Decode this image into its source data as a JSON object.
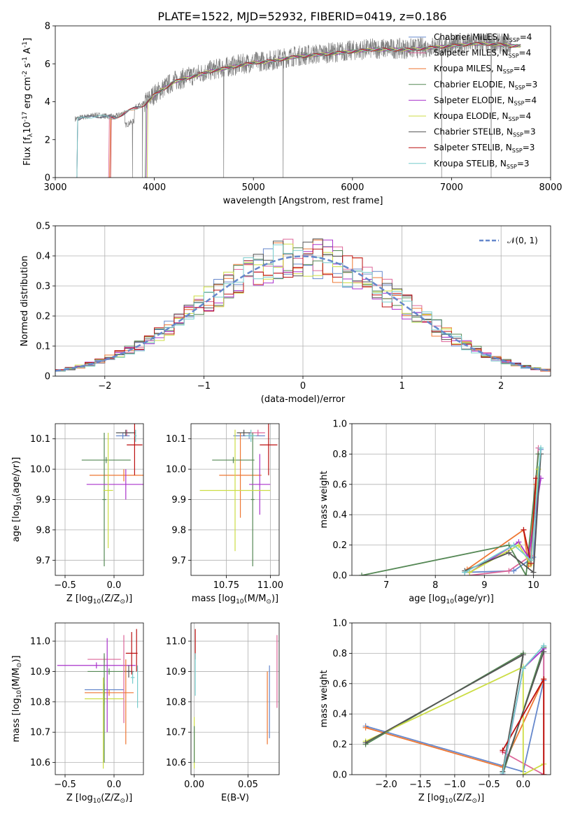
{
  "figure_title": "PLATE=1522, MJD=52932, FIBERID=0419, z=0.186",
  "colors": {
    "chabrier_miles": "#6688cc",
    "salpeter_miles": "#dd6699",
    "kroupa_miles": "#ee7733",
    "chabrier_elodie": "#558855",
    "salpeter_elodie": "#aa33cc",
    "kroupa_elodie": "#ccdd44",
    "chabrier_stelib": "#555555",
    "salpeter_stelib": "#bb1111",
    "kroupa_stelib": "#77cccc",
    "data": "#808080",
    "gauss": "#6688cc",
    "grid": "#b0b0b0"
  },
  "chart_data": [
    {
      "id": "spectrum",
      "type": "line",
      "xlabel": "wavelength [Angstrom, rest frame]",
      "ylabel": "Flux [f$_\\lambda$10$^{-17}$ erg cm$^{-2}$ s$^{-1}$ A$^{-1}$]",
      "xlim": [
        3000,
        8000
      ],
      "ylim": [
        0,
        8
      ],
      "xticks": [
        3000,
        4000,
        5000,
        6000,
        7000,
        8000
      ],
      "yticks": [
        0,
        2,
        4,
        6,
        8
      ],
      "grid": false,
      "legend_loc": "right",
      "legend": [
        {
          "main": "Chabrier MILES, N",
          "sub": "SSP",
          "tail": "=4",
          "color": "#6688cc"
        },
        {
          "main": "Salpeter MILES, N",
          "sub": "SSP",
          "tail": "=4",
          "color": "#dd6699"
        },
        {
          "main": "Kroupa MILES, N",
          "sub": "SSP",
          "tail": "=4",
          "color": "#ee7733"
        },
        {
          "main": "Chabrier ELODIE, N",
          "sub": "SSP",
          "tail": "=3",
          "color": "#558855"
        },
        {
          "main": "Salpeter ELODIE, N",
          "sub": "SSP",
          "tail": "=4",
          "color": "#aa33cc"
        },
        {
          "main": "Kroupa ELODIE, N",
          "sub": "SSP",
          "tail": "=4",
          "color": "#ccdd44"
        },
        {
          "main": "Chabrier STELIB, N",
          "sub": "SSP",
          "tail": "=3",
          "color": "#555555"
        },
        {
          "main": "Salpeter STELIB, N",
          "sub": "SSP",
          "tail": "=3",
          "color": "#bb1111"
        },
        {
          "main": "Kroupa STELIB, N",
          "sub": "SSP",
          "tail": "=3",
          "color": "#77cccc"
        }
      ],
      "data_envelope": {
        "x": [
          3200,
          3400,
          3600,
          3800,
          3900,
          4000,
          4200,
          4400,
          4600,
          4800,
          5000,
          5200,
          5400,
          5600,
          5800,
          6000,
          6200,
          6400,
          6600,
          6800,
          7000,
          7200,
          7400,
          7600
        ],
        "y": [
          3.1,
          3.3,
          3.2,
          3.7,
          3.9,
          4.4,
          5.1,
          5.4,
          5.7,
          5.9,
          6.1,
          6.2,
          6.4,
          6.5,
          6.6,
          6.7,
          6.8,
          6.8,
          6.8,
          6.9,
          7.0,
          7.1,
          7.1,
          7.0
        ]
      },
      "data_dips": [
        3780,
        3880,
        4700,
        5300,
        6900,
        7400
      ]
    },
    {
      "id": "residuals",
      "type": "line",
      "xlabel": "(data-model)/error",
      "ylabel": "Normed distribution",
      "xlim": [
        -2.5,
        2.5
      ],
      "ylim": [
        0,
        0.5
      ],
      "xticks": [
        -2,
        -1,
        0,
        1,
        2
      ],
      "yticks": [
        0.0,
        0.1,
        0.2,
        0.3,
        0.4,
        0.5
      ],
      "grid": true,
      "legend_loc": "upper right",
      "gauss_label": "$\\mathcal{N}(0,1)$",
      "gauss": {
        "mean": 0,
        "sigma": 1
      },
      "hist_bins": {
        "start": -2.5,
        "width": 0.1,
        "count": 50
      }
    },
    {
      "id": "age_vs_Z",
      "type": "scatter",
      "xlabel": "Z [log$_{10}$(Z/Z$_\\odot$)]",
      "ylabel": "age  [log$_{10}$(age/yr)]",
      "xlim": [
        -0.6,
        0.3
      ],
      "ylim": [
        9.65,
        10.15
      ],
      "xticks": [
        -0.5,
        0.0
      ],
      "yticks": [
        9.7,
        9.8,
        9.9,
        10.0,
        10.1
      ],
      "grid": true,
      "points": [
        {
          "s": 0,
          "x": 0.09,
          "y": 10.11,
          "xerr": 0.07,
          "yerr": 0.01
        },
        {
          "s": 1,
          "x": 0.13,
          "y": 10.12,
          "xerr": 0.04,
          "yerr": 0.01
        },
        {
          "s": 2,
          "x": 0.1,
          "y": 9.98,
          "xerr": 0.35,
          "yerr": 0.02
        },
        {
          "s": 3,
          "x": -0.1,
          "y": 9.9,
          "xerr": 0.02,
          "yerr": 0.22
        },
        {
          "s": 3,
          "x": -0.08,
          "y": 10.03,
          "xerr": 0.25,
          "yerr": 0.01
        },
        {
          "s": 4,
          "x": 0.12,
          "y": 9.95,
          "xerr": 0.4,
          "yerr": 0.05
        },
        {
          "s": 5,
          "x": -0.06,
          "y": 9.93,
          "xerr": 0.05,
          "yerr": 0.19
        },
        {
          "s": 6,
          "x": 0.12,
          "y": 10.12,
          "xerr": 0.1,
          "yerr": 0.01
        },
        {
          "s": 7,
          "x": 0.21,
          "y": 10.08,
          "xerr": 0.08,
          "yerr": 0.1
        },
        {
          "s": 8,
          "x": 0.22,
          "y": 10.11,
          "xerr": 0.01,
          "yerr": 0.02
        }
      ]
    },
    {
      "id": "age_vs_mass",
      "type": "scatter",
      "xlabel": "mass [log$_{10}$(M/M$_\\odot$)]",
      "ylabel": "",
      "xlim": [
        10.55,
        11.05
      ],
      "ylim": [
        9.65,
        10.15
      ],
      "xticks": [
        10.75,
        11.0
      ],
      "yticks": [
        9.7,
        9.8,
        9.9,
        10.0,
        10.1
      ],
      "grid": true,
      "points": [
        {
          "s": 0,
          "x": 10.88,
          "y": 10.11,
          "xerr": 0.09,
          "yerr": 0.01
        },
        {
          "s": 1,
          "x": 10.93,
          "y": 10.12,
          "xerr": 0.04,
          "yerr": 0.01
        },
        {
          "s": 2,
          "x": 10.83,
          "y": 9.98,
          "xerr": 0.12,
          "yerr": 0.14
        },
        {
          "s": 3,
          "x": 10.9,
          "y": 9.9,
          "xerr": 0.01,
          "yerr": 0.22
        },
        {
          "s": 3,
          "x": 10.79,
          "y": 10.03,
          "xerr": 0.12,
          "yerr": 0.01
        },
        {
          "s": 4,
          "x": 10.94,
          "y": 9.95,
          "xerr": 0.06,
          "yerr": 0.1
        },
        {
          "s": 5,
          "x": 10.8,
          "y": 9.93,
          "xerr": 0.2,
          "yerr": 0.2
        },
        {
          "s": 6,
          "x": 10.85,
          "y": 10.12,
          "xerr": 0.04,
          "yerr": 0.01
        },
        {
          "s": 7,
          "x": 10.99,
          "y": 10.08,
          "xerr": 0.05,
          "yerr": 0.1
        },
        {
          "s": 8,
          "x": 10.89,
          "y": 10.11,
          "xerr": 0.03,
          "yerr": 0.02
        }
      ]
    },
    {
      "id": "mass_weight_vs_age",
      "type": "line",
      "xlabel": "age  [log$_{10}$(age/yr)]",
      "ylabel": "mass weight",
      "xlim": [
        6.3,
        10.35
      ],
      "ylim": [
        0,
        1
      ],
      "xticks": [
        7,
        8,
        9,
        10
      ],
      "yticks": [
        0.0,
        0.2,
        0.4,
        0.6,
        0.8,
        1.0
      ],
      "grid": true,
      "series": [
        {
          "s": 0,
          "x": [
            8.6,
            9.6,
            10.0,
            10.15
          ],
          "y": [
            0.02,
            0.03,
            0.12,
            0.83
          ]
        },
        {
          "s": 1,
          "x": [
            8.7,
            9.5,
            9.95,
            10.1
          ],
          "y": [
            0.0,
            0.03,
            0.13,
            0.84
          ]
        },
        {
          "s": 2,
          "x": [
            8.65,
            9.8,
            9.9,
            10.05
          ],
          "y": [
            0.04,
            0.3,
            0.06,
            0.6
          ]
        },
        {
          "s": 3,
          "x": [
            6.5,
            9.5,
            9.85,
            10.1
          ],
          "y": [
            0.0,
            0.2,
            0.0,
            0.8
          ]
        },
        {
          "s": 4,
          "x": [
            8.7,
            9.7,
            9.9,
            10.15
          ],
          "y": [
            0.02,
            0.22,
            0.12,
            0.64
          ]
        },
        {
          "s": 5,
          "x": [
            8.7,
            9.7,
            9.95,
            10.1
          ],
          "y": [
            0.02,
            0.2,
            0.07,
            0.7
          ]
        },
        {
          "s": 6,
          "x": [
            8.6,
            9.5,
            10.0,
            10.15
          ],
          "y": [
            0.03,
            0.15,
            0.02,
            0.8
          ]
        },
        {
          "s": 7,
          "x": [
            9.8,
            9.95,
            10.05
          ],
          "y": [
            0.3,
            0.08,
            0.64
          ]
        },
        {
          "s": 8,
          "x": [
            8.6,
            9.6,
            9.95,
            10.15
          ],
          "y": [
            0.02,
            0.2,
            0.1,
            0.84
          ]
        }
      ]
    },
    {
      "id": "mass_vs_Z",
      "type": "scatter",
      "xlabel": "Z [log$_{10}$(Z/Z$_\\odot$)]",
      "ylabel": "mass [log$_{10}$(M/M$_\\odot$)]",
      "xlim": [
        -0.6,
        0.3
      ],
      "ylim": [
        10.56,
        11.06
      ],
      "xticks": [
        -0.5,
        0.0
      ],
      "yticks": [
        10.6,
        10.7,
        10.8,
        10.9,
        11.0
      ],
      "grid": true,
      "points": [
        {
          "s": 0,
          "x": -0.1,
          "y": 10.84,
          "xerr": 0.2,
          "yerr": 0.02
        },
        {
          "s": 1,
          "x": -0.1,
          "y": 10.94,
          "xerr": 0.17,
          "yerr": 0.01
        },
        {
          "s": 2,
          "x": -0.05,
          "y": 10.83,
          "xerr": 0.25,
          "yerr": 0.01
        },
        {
          "s": 3,
          "x": -0.05,
          "y": 10.9,
          "xerr": 0.22,
          "yerr": 0.01
        },
        {
          "s": 4,
          "x": -0.18,
          "y": 10.92,
          "xerr": 0.4,
          "yerr": 0.01
        },
        {
          "s": 5,
          "x": -0.1,
          "y": 10.81,
          "xerr": 0.2,
          "yerr": 0.02
        },
        {
          "s": 6,
          "x": 0.15,
          "y": 10.9,
          "xerr": 0.05,
          "yerr": 0.02
        },
        {
          "s": 7,
          "x": 0.18,
          "y": 10.96,
          "xerr": 0.06,
          "yerr": 0.07
        },
        {
          "s": 8,
          "x": 0.19,
          "y": 10.88,
          "xerr": 0.02,
          "yerr": 0.02
        }
      ],
      "vlines": [
        {
          "s": 3,
          "x": -0.1,
          "y": [
            10.6,
            10.96
          ]
        },
        {
          "s": 5,
          "x": -0.11,
          "y": [
            10.58,
            10.88
          ]
        },
        {
          "s": 4,
          "x": -0.07,
          "y": [
            10.7,
            11.01
          ]
        },
        {
          "s": 1,
          "x": 0.1,
          "y": [
            10.73,
            11.02
          ]
        },
        {
          "s": 2,
          "x": 0.12,
          "y": [
            10.66,
            10.94
          ]
        },
        {
          "s": 7,
          "x": 0.23,
          "y": [
            10.9,
            11.04
          ]
        },
        {
          "s": 8,
          "x": 0.24,
          "y": [
            10.78,
            10.92
          ]
        }
      ]
    },
    {
      "id": "mass_vs_ebv",
      "type": "scatter",
      "xlabel": "E(B-V)",
      "ylabel": "",
      "xlim": [
        -0.003,
        0.079
      ],
      "ylim": [
        10.56,
        11.06
      ],
      "xticks": [
        0.0,
        0.05
      ],
      "yticks": [
        10.6,
        10.7,
        10.8,
        10.9,
        11.0
      ],
      "grid": true,
      "vlines": [
        {
          "s": 7,
          "x": 0.001,
          "y": [
            10.94,
            11.04
          ]
        },
        {
          "s": 8,
          "x": 0.001,
          "y": [
            10.82,
            10.96
          ]
        },
        {
          "s": 5,
          "x": 0.0,
          "y": [
            10.58,
            10.75
          ]
        },
        {
          "s": 3,
          "x": 0.0,
          "y": [
            10.6,
            10.72
          ]
        },
        {
          "s": 2,
          "x": 0.068,
          "y": [
            10.66,
            10.9
          ]
        },
        {
          "s": 0,
          "x": 0.07,
          "y": [
            10.68,
            10.92
          ]
        },
        {
          "s": 1,
          "x": 0.077,
          "y": [
            10.78,
            11.02
          ]
        }
      ]
    },
    {
      "id": "mass_weight_vs_Z",
      "type": "line",
      "xlabel": "Z [log$_{10}$(Z/Z$_\\odot$)]",
      "ylabel": "mass weight",
      "xlim": [
        -2.5,
        0.4
      ],
      "ylim": [
        0,
        1
      ],
      "xticks": [
        -2.0,
        -1.5,
        -1.0,
        -0.5,
        0.0
      ],
      "yticks": [
        0.0,
        0.2,
        0.4,
        0.6,
        0.8,
        1.0
      ],
      "grid": true,
      "series": [
        {
          "s": 0,
          "x": [
            -2.3,
            0.0,
            0.3,
            0.3
          ],
          "y": [
            0.32,
            0.02,
            0.62,
            0.84
          ]
        },
        {
          "s": 1,
          "x": [
            -0.3,
            0.3,
            0.3
          ],
          "y": [
            0.15,
            0.0,
            0.84
          ]
        },
        {
          "s": 2,
          "x": [
            -2.3,
            -0.3,
            0.3,
            0.3
          ],
          "y": [
            0.31,
            0.05,
            0.63,
            0.0
          ]
        },
        {
          "s": 3,
          "x": [
            -2.3,
            0.0,
            -0.3,
            0.3
          ],
          "y": [
            0.2,
            0.8,
            0.0,
            0.84
          ]
        },
        {
          "s": 4,
          "x": [
            -0.3,
            0.0,
            0.3
          ],
          "y": [
            0.0,
            0.7,
            0.83
          ]
        },
        {
          "s": 5,
          "x": [
            -2.3,
            0.0,
            0.0,
            0.3
          ],
          "y": [
            0.22,
            0.71,
            0.0,
            0.07
          ]
        },
        {
          "s": 6,
          "x": [
            -2.3,
            0.0,
            -0.3,
            0.3
          ],
          "y": [
            0.21,
            0.79,
            0.02,
            0.81
          ]
        },
        {
          "s": 7,
          "x": [
            -0.3,
            0.3,
            0.3
          ],
          "y": [
            0.16,
            0.63,
            0.0
          ]
        },
        {
          "s": 8,
          "x": [
            -0.3,
            0.0,
            0.3
          ],
          "y": [
            0.01,
            0.7,
            0.85
          ]
        }
      ]
    }
  ]
}
